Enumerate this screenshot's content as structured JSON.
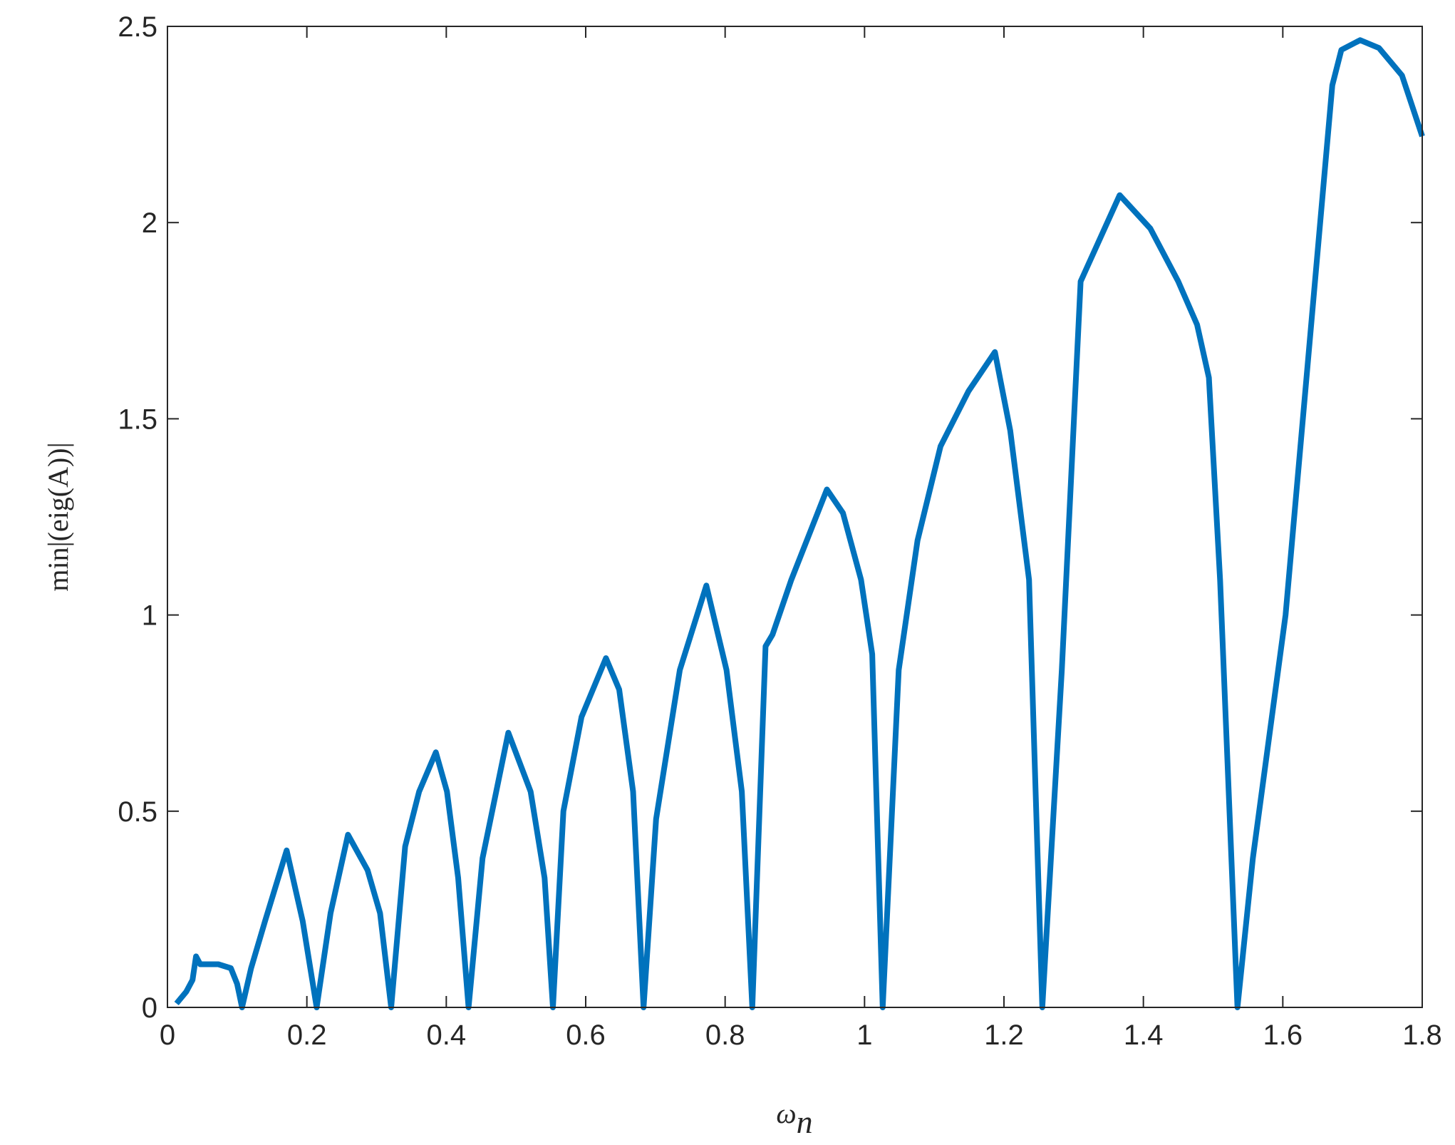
{
  "chart_data": {
    "type": "line",
    "xlabel": "ω",
    "xlabel_subscript": "n",
    "ylabel": "min|(eig(A))|",
    "xlim": [
      0,
      1.8
    ],
    "xticks": [
      0,
      0.2,
      0.4,
      0.6,
      0.8,
      1,
      1.2,
      1.4,
      1.6,
      1.8
    ],
    "ylim": [
      0,
      2.5
    ],
    "yticks": [
      0,
      0.5,
      1,
      1.5,
      2,
      2.5
    ],
    "grid": false,
    "series": [
      {
        "color": "#0072bd",
        "x": [
          0.013,
          0.027,
          0.036,
          0.041,
          0.047,
          0.073,
          0.091,
          0.1,
          0.107,
          0.12,
          0.14,
          0.171,
          0.194,
          0.214,
          0.234,
          0.259,
          0.287,
          0.305,
          0.321,
          0.341,
          0.361,
          0.385,
          0.401,
          0.417,
          0.432,
          0.452,
          0.489,
          0.521,
          0.541,
          0.553,
          0.568,
          0.594,
          0.629,
          0.648,
          0.668,
          0.683,
          0.701,
          0.735,
          0.773,
          0.802,
          0.824,
          0.839,
          0.858,
          0.868,
          0.895,
          0.946,
          0.969,
          0.995,
          1.011,
          1.026,
          1.049,
          1.076,
          1.109,
          1.149,
          1.187,
          1.209,
          1.236,
          1.255,
          1.283,
          1.31,
          1.366,
          1.41,
          1.45,
          1.477,
          1.494,
          1.51,
          1.535,
          1.557,
          1.604,
          1.671,
          1.684,
          1.711,
          1.738,
          1.771,
          1.8
        ],
        "values": [
          0.01,
          0.04,
          0.07,
          0.13,
          0.11,
          0.11,
          0.1,
          0.06,
          0,
          0.1,
          0.22,
          0.4,
          0.22,
          0,
          0.24,
          0.44,
          0.35,
          0.24,
          0,
          0.41,
          0.55,
          0.65,
          0.55,
          0.33,
          0,
          0.38,
          0.7,
          0.55,
          0.33,
          0,
          0.5,
          0.74,
          0.89,
          0.81,
          0.55,
          0,
          0.48,
          0.86,
          1.075,
          0.86,
          0.55,
          0,
          0.92,
          0.95,
          1.09,
          1.32,
          1.26,
          1.09,
          0.9,
          0,
          0.86,
          1.19,
          1.43,
          1.57,
          1.67,
          1.47,
          1.09,
          0,
          0.86,
          1.85,
          2.07,
          1.985,
          1.85,
          1.74,
          1.605,
          1.09,
          0,
          0.38,
          1,
          2.35,
          2.44,
          2.465,
          2.445,
          2.375,
          2.22
        ]
      }
    ]
  }
}
